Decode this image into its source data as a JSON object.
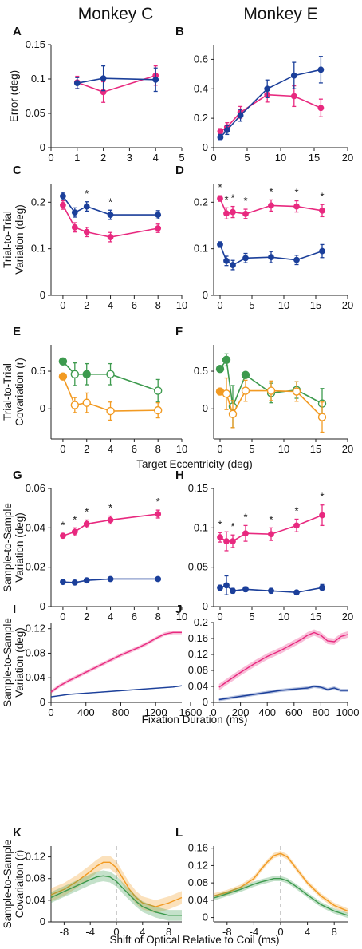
{
  "headers": [
    "Monkey C",
    "Monkey E"
  ],
  "colors": {
    "magenta": "#e8297f",
    "blue": "#1b3f9a",
    "green": "#3d9a4e",
    "orange": "#f29a22",
    "grey": "#999999"
  },
  "shared_xlabels": {
    "eccentricity": "Target Eccentricity (deg)",
    "duration": "Fixation Duration (ms)",
    "shift": "Shift of Optical Relative to Coil (ms)"
  },
  "chart_data": [
    {
      "panel": "A",
      "type": "line",
      "ylabel": "Error (deg)",
      "xlim": [
        0,
        5
      ],
      "ylim": [
        0,
        0.15
      ],
      "xticks": [
        "0",
        "1",
        "2",
        "3",
        "4",
        "5"
      ],
      "yticks": [
        "0",
        "0.05",
        "0.1",
        "0.15"
      ],
      "series": [
        {
          "color": "magenta",
          "marker": "filled",
          "x": [
            1,
            2,
            4
          ],
          "y": [
            0.095,
            0.081,
            0.105
          ],
          "err": [
            0.009,
            0.015,
            0.014
          ]
        },
        {
          "color": "blue",
          "marker": "filled",
          "x": [
            1,
            2,
            4
          ],
          "y": [
            0.094,
            0.101,
            0.099
          ],
          "err": [
            0.008,
            0.018,
            0.017
          ]
        }
      ]
    },
    {
      "panel": "B",
      "type": "line",
      "xlim": [
        0,
        20
      ],
      "ylim": [
        0,
        0.7
      ],
      "xticks": [
        "0",
        "5",
        "10",
        "15",
        "20"
      ],
      "yticks": [
        "0",
        "0.2",
        "0.4",
        "0.6"
      ],
      "series": [
        {
          "color": "magenta",
          "marker": "filled",
          "x": [
            1,
            2,
            4,
            8,
            12,
            16
          ],
          "y": [
            0.11,
            0.14,
            0.24,
            0.36,
            0.35,
            0.27
          ],
          "err": [
            0.02,
            0.03,
            0.04,
            0.05,
            0.07,
            0.06
          ]
        },
        {
          "color": "blue",
          "marker": "filled",
          "x": [
            1,
            2,
            4,
            8,
            12,
            16
          ],
          "y": [
            0.07,
            0.12,
            0.22,
            0.4,
            0.49,
            0.53
          ],
          "err": [
            0.02,
            0.03,
            0.04,
            0.06,
            0.09,
            0.09
          ]
        }
      ]
    },
    {
      "panel": "C",
      "type": "line",
      "ylabel": "Trial-to-Trial Variation (deg)",
      "xlim": [
        -1,
        10
      ],
      "ylim": [
        0,
        0.24
      ],
      "xticks": [
        "0",
        "2",
        "4",
        "6",
        "8",
        "10"
      ],
      "yticks": [
        "0",
        "0.1",
        "0.2"
      ],
      "stars_x": [
        2,
        4
      ],
      "series": [
        {
          "color": "magenta",
          "marker": "filled",
          "x": [
            0,
            1,
            2,
            4,
            8
          ],
          "y": [
            0.194,
            0.146,
            0.136,
            0.125,
            0.144
          ],
          "err": [
            0.009,
            0.01,
            0.01,
            0.01,
            0.009
          ]
        },
        {
          "color": "blue",
          "marker": "filled",
          "x": [
            0,
            1,
            2,
            4,
            8
          ],
          "y": [
            0.213,
            0.178,
            0.191,
            0.173,
            0.173
          ],
          "err": [
            0.008,
            0.01,
            0.01,
            0.01,
            0.009
          ]
        }
      ]
    },
    {
      "panel": "D",
      "type": "line",
      "xlim": [
        -1,
        20
      ],
      "ylim": [
        0,
        0.24
      ],
      "xticks": [
        "0",
        "5",
        "10",
        "15",
        "20"
      ],
      "yticks": [
        "0",
        "0.1",
        "0.2"
      ],
      "stars_x": [
        0,
        1,
        2,
        4,
        8,
        12,
        16
      ],
      "series": [
        {
          "color": "magenta",
          "marker": "filled",
          "x": [
            0,
            1,
            2,
            4,
            8,
            12,
            16
          ],
          "y": [
            0.208,
            0.176,
            0.179,
            0.175,
            0.193,
            0.191,
            0.182
          ],
          "err": [
            0.006,
            0.012,
            0.012,
            0.01,
            0.012,
            0.012,
            0.013
          ]
        },
        {
          "color": "blue",
          "marker": "filled",
          "x": [
            0,
            1,
            2,
            4,
            8,
            12,
            16
          ],
          "y": [
            0.109,
            0.074,
            0.065,
            0.08,
            0.082,
            0.076,
            0.095
          ],
          "err": [
            0.006,
            0.01,
            0.01,
            0.01,
            0.012,
            0.01,
            0.014
          ]
        }
      ]
    },
    {
      "panel": "E",
      "type": "line",
      "ylabel": "Trial-to-Trial Covariation (r)",
      "xlim": [
        -1,
        10
      ],
      "ylim": [
        -0.4,
        0.85
      ],
      "xticks": [
        "0",
        "2",
        "4",
        "6",
        "8",
        "10"
      ],
      "yticks": [
        "0",
        "0.5"
      ],
      "series": [
        {
          "color": "green",
          "x": [
            0,
            1,
            2,
            4,
            8
          ],
          "y": [
            0.63,
            0.46,
            0.46,
            0.46,
            0.24
          ],
          "err": [
            0,
            0.15,
            0.14,
            0.14,
            0.15
          ],
          "filled": [
            true,
            false,
            true,
            false,
            false
          ]
        },
        {
          "color": "orange",
          "x": [
            0,
            1,
            2,
            4,
            8
          ],
          "y": [
            0.43,
            0.05,
            0.08,
            -0.03,
            -0.02
          ],
          "err": [
            0,
            0.1,
            0.13,
            0.12,
            0.1
          ],
          "filled": [
            true,
            false,
            false,
            false,
            false
          ]
        }
      ]
    },
    {
      "panel": "F",
      "type": "line",
      "xlim": [
        -1,
        20
      ],
      "ylim": [
        -0.4,
        0.85
      ],
      "xticks": [
        "0",
        "5",
        "10",
        "15",
        "20"
      ],
      "yticks": [
        "0",
        "0.5"
      ],
      "series": [
        {
          "color": "green",
          "x": [
            0,
            1,
            2,
            4,
            8,
            12,
            16
          ],
          "y": [
            0.53,
            0.65,
            0.03,
            0.45,
            0.21,
            0.25,
            0.07
          ],
          "err": [
            0,
            0.08,
            0.28,
            0,
            0.13,
            0.11,
            0.2
          ],
          "filled": [
            true,
            true,
            false,
            true,
            false,
            false,
            false
          ]
        },
        {
          "color": "orange",
          "x": [
            0,
            1,
            2,
            4,
            8,
            12,
            16
          ],
          "y": [
            0.23,
            0.2,
            -0.07,
            0.24,
            0.24,
            0.23,
            -0.11
          ],
          "err": [
            0,
            0.21,
            0.18,
            0.14,
            0.13,
            0.13,
            0.2
          ],
          "filled": [
            true,
            false,
            false,
            false,
            false,
            false,
            false
          ]
        }
      ]
    },
    {
      "panel": "G",
      "type": "line",
      "ylabel": "Sample-to-Sample Variation (deg)",
      "xlim": [
        -1,
        10
      ],
      "ylim": [
        0,
        0.06
      ],
      "xticks": [
        "0",
        "2",
        "4",
        "6",
        "8",
        "10"
      ],
      "yticks": [
        "0",
        "0.02",
        "0.04",
        "0.06"
      ],
      "stars_x": [
        0,
        1,
        2,
        4,
        8
      ],
      "series": [
        {
          "color": "magenta",
          "marker": "filled",
          "x": [
            0,
            1,
            2,
            4,
            8
          ],
          "y": [
            0.036,
            0.038,
            0.042,
            0.044,
            0.047
          ],
          "err": [
            0.001,
            0.002,
            0.002,
            0.002,
            0.002
          ]
        },
        {
          "color": "blue",
          "marker": "filled",
          "x": [
            0,
            1,
            2,
            4,
            8
          ],
          "y": [
            0.0125,
            0.0122,
            0.0133,
            0.014,
            0.014
          ],
          "err": [
            0.0004,
            0.0004,
            0.0004,
            0.0004,
            0.0004
          ]
        }
      ]
    },
    {
      "panel": "H",
      "type": "line",
      "xlim": [
        -1,
        20
      ],
      "ylim": [
        0,
        0.15
      ],
      "xticks": [
        "0",
        "5",
        "10",
        "15",
        "20"
      ],
      "yticks": [
        "0",
        "0.05",
        "0.1",
        "0.15"
      ],
      "stars_x": [
        0,
        2,
        4,
        8,
        12,
        16
      ],
      "series": [
        {
          "color": "magenta",
          "marker": "filled",
          "x": [
            0,
            1,
            2,
            4,
            8,
            12,
            16
          ],
          "y": [
            0.088,
            0.083,
            0.083,
            0.093,
            0.092,
            0.103,
            0.116
          ],
          "err": [
            0.006,
            0.012,
            0.008,
            0.01,
            0.008,
            0.008,
            0.013
          ]
        },
        {
          "color": "blue",
          "marker": "filled",
          "x": [
            0,
            1,
            2,
            4,
            8,
            12,
            16
          ],
          "y": [
            0.024,
            0.027,
            0.02,
            0.022,
            0.02,
            0.018,
            0.024
          ],
          "err": [
            0.003,
            0.012,
            0.003,
            0.003,
            0.003,
            0.002,
            0.004
          ]
        }
      ]
    },
    {
      "panel": "I",
      "type": "line",
      "ylabel": "Sample-to-Sample Variation (deg)",
      "xlim": [
        0,
        1500
      ],
      "ylim": [
        0,
        0.13
      ],
      "xticks": [
        "0",
        "400",
        "800",
        "1200",
        "1600"
      ],
      "yticks": [
        "0",
        "0.04",
        "0.08",
        "0.12"
      ],
      "series": [
        {
          "color": "magenta",
          "x": [
            0,
            100,
            200,
            300,
            400,
            500,
            600,
            700,
            800,
            900,
            1000,
            1100,
            1200,
            1300,
            1400,
            1500
          ],
          "y": [
            0.017,
            0.027,
            0.035,
            0.042,
            0.049,
            0.056,
            0.063,
            0.07,
            0.077,
            0.083,
            0.089,
            0.096,
            0.104,
            0.111,
            0.114,
            0.114
          ],
          "band": 0.003
        },
        {
          "color": "blue",
          "x": [
            0,
            100,
            200,
            300,
            400,
            600,
            800,
            1000,
            1200,
            1400,
            1500
          ],
          "y": [
            0.009,
            0.011,
            0.013,
            0.014,
            0.015,
            0.017,
            0.019,
            0.021,
            0.023,
            0.025,
            0.027
          ],
          "band": 0.001
        }
      ]
    },
    {
      "panel": "J",
      "type": "line",
      "xlim": [
        0,
        1000
      ],
      "ylim": [
        0,
        0.2
      ],
      "xticks": [
        "0",
        "200",
        "400",
        "600",
        "800",
        "1000"
      ],
      "yticks": [
        "0",
        "0.04",
        "0.08",
        "0.12",
        "0.16",
        "0.2"
      ],
      "series": [
        {
          "color": "magenta",
          "x": [
            40,
            100,
            200,
            300,
            400,
            500,
            600,
            650,
            700,
            750,
            800,
            850,
            900,
            950,
            1000
          ],
          "y": [
            0.038,
            0.052,
            0.075,
            0.096,
            0.115,
            0.13,
            0.148,
            0.157,
            0.168,
            0.175,
            0.168,
            0.154,
            0.152,
            0.165,
            0.17
          ],
          "band": 0.008
        },
        {
          "color": "blue",
          "x": [
            40,
            100,
            200,
            300,
            400,
            500,
            600,
            700,
            750,
            800,
            850,
            900,
            950,
            1000
          ],
          "y": [
            0.007,
            0.01,
            0.015,
            0.02,
            0.025,
            0.03,
            0.033,
            0.036,
            0.04,
            0.038,
            0.032,
            0.036,
            0.03,
            0.03
          ],
          "band": 0.004
        }
      ]
    },
    {
      "panel": "K",
      "type": "area",
      "ylabel": "Sample-to-Sample Covariaiton (r)",
      "xlim": [
        -10,
        10
      ],
      "ylim": [
        0,
        0.14
      ],
      "xticks": [
        "-8",
        "-4",
        "0",
        "4",
        "8"
      ],
      "yticks": [
        "0",
        "0.04",
        "0.08",
        "0.12"
      ],
      "series": [
        {
          "color": "orange",
          "x": [
            -10,
            -8,
            -6,
            -4,
            -3,
            -2,
            -1,
            0,
            1,
            2,
            3,
            4,
            6,
            8,
            10
          ],
          "y": [
            0.05,
            0.06,
            0.075,
            0.093,
            0.103,
            0.11,
            0.11,
            0.1,
            0.08,
            0.06,
            0.045,
            0.035,
            0.028,
            0.035,
            0.045
          ],
          "band": 0.012
        },
        {
          "color": "green",
          "x": [
            -10,
            -8,
            -6,
            -4,
            -3,
            -2,
            -1,
            0,
            1,
            2,
            3,
            4,
            6,
            8,
            10
          ],
          "y": [
            0.045,
            0.056,
            0.067,
            0.078,
            0.083,
            0.085,
            0.083,
            0.075,
            0.062,
            0.05,
            0.038,
            0.028,
            0.018,
            0.012,
            0.012
          ],
          "band": 0.01
        }
      ]
    },
    {
      "panel": "L",
      "type": "area",
      "xlim": [
        -10,
        10
      ],
      "ylim": [
        -0.01,
        0.165
      ],
      "xticks": [
        "-8",
        "-4",
        "0",
        "4",
        "8"
      ],
      "yticks": [
        "0",
        "0.04",
        "0.08",
        "0.12",
        "0.16"
      ],
      "series": [
        {
          "color": "orange",
          "x": [
            -10,
            -8,
            -6,
            -4,
            -3,
            -2,
            -1,
            0,
            1,
            2,
            3,
            4,
            6,
            8,
            10
          ],
          "y": [
            0.05,
            0.058,
            0.07,
            0.09,
            0.11,
            0.128,
            0.143,
            0.148,
            0.14,
            0.12,
            0.1,
            0.08,
            0.05,
            0.028,
            0.015
          ],
          "band": 0.006
        },
        {
          "color": "green",
          "x": [
            -10,
            -8,
            -6,
            -4,
            -3,
            -2,
            -1,
            0,
            1,
            2,
            3,
            4,
            6,
            8,
            10
          ],
          "y": [
            0.045,
            0.055,
            0.065,
            0.077,
            0.082,
            0.086,
            0.09,
            0.09,
            0.085,
            0.075,
            0.064,
            0.052,
            0.03,
            0.015,
            0.005
          ],
          "band": 0.006
        }
      ]
    }
  ]
}
